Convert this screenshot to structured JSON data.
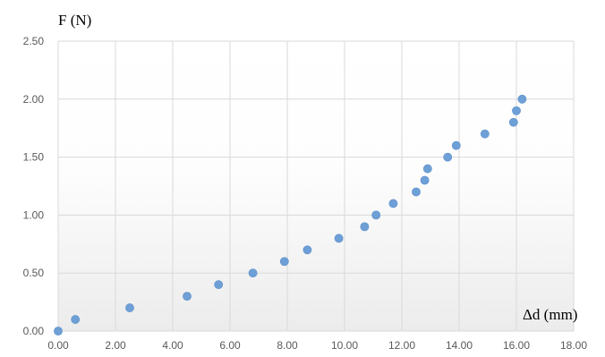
{
  "chart_data": {
    "type": "scatter",
    "title": "",
    "xlabel": "Δd (mm)",
    "ylabel": "F (N)",
    "xlim": [
      0,
      18
    ],
    "ylim": [
      0,
      2.5
    ],
    "x_ticks": [
      "0.00",
      "2.00",
      "4.00",
      "6.00",
      "8.00",
      "10.00",
      "12.00",
      "14.00",
      "16.00",
      "18.00"
    ],
    "y_ticks": [
      "0.00",
      "0.50",
      "1.00",
      "1.50",
      "2.00",
      "2.50"
    ],
    "grid": true,
    "legend": "none",
    "marker_color": "#6e9fd6",
    "points": [
      {
        "x": 0.0,
        "y": 0.0
      },
      {
        "x": 0.6,
        "y": 0.1
      },
      {
        "x": 2.5,
        "y": 0.2
      },
      {
        "x": 4.5,
        "y": 0.3
      },
      {
        "x": 5.6,
        "y": 0.4
      },
      {
        "x": 6.8,
        "y": 0.5
      },
      {
        "x": 7.9,
        "y": 0.6
      },
      {
        "x": 8.7,
        "y": 0.7
      },
      {
        "x": 9.8,
        "y": 0.8
      },
      {
        "x": 10.7,
        "y": 0.9
      },
      {
        "x": 11.1,
        "y": 1.0
      },
      {
        "x": 11.7,
        "y": 1.1
      },
      {
        "x": 12.5,
        "y": 1.2
      },
      {
        "x": 12.8,
        "y": 1.3
      },
      {
        "x": 12.9,
        "y": 1.4
      },
      {
        "x": 13.6,
        "y": 1.5
      },
      {
        "x": 13.9,
        "y": 1.6
      },
      {
        "x": 14.9,
        "y": 1.7
      },
      {
        "x": 15.9,
        "y": 1.8
      },
      {
        "x": 16.0,
        "y": 1.9
      },
      {
        "x": 16.2,
        "y": 2.0
      }
    ]
  }
}
